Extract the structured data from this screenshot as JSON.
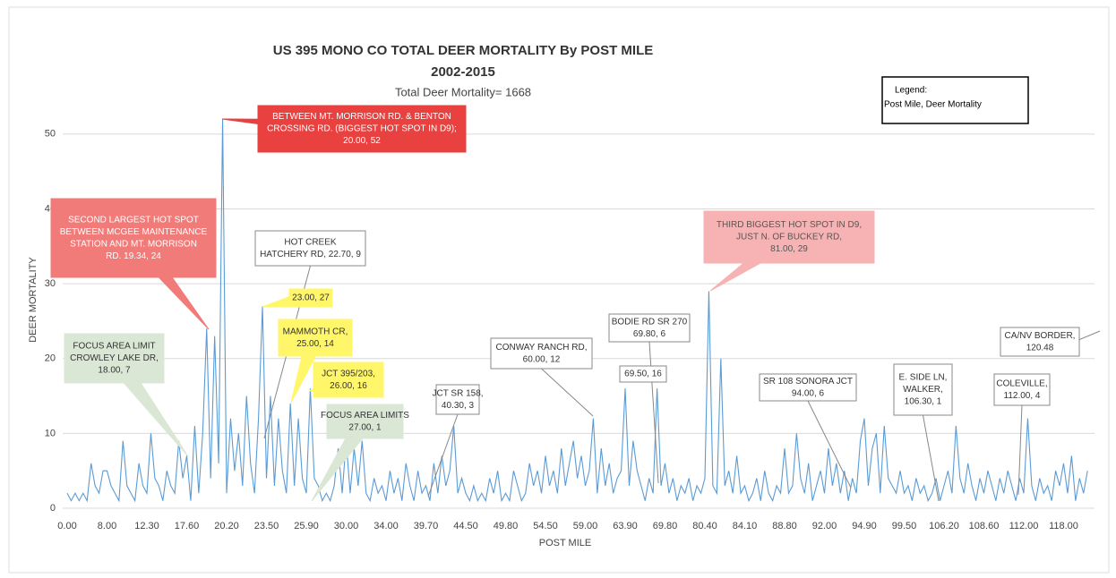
{
  "chart_data": {
    "type": "line",
    "title": "US 395 MONO CO TOTAL DEER MORTALITY By POST MILE",
    "subtitle": "2002-2015",
    "total_label": "Total Deer Mortality= 1668",
    "legend_lines": [
      "Legend:",
      "Post Mile, Deer Mortality"
    ],
    "ylabel": "DEER MORTALITY",
    "xlabel": "POST MILE",
    "ylim": [
      0,
      55
    ],
    "yticks": [
      0,
      10,
      20,
      30,
      40,
      50
    ],
    "grid": true,
    "categories": [
      {
        "value": 0,
        "label": "0.00"
      },
      null,
      null,
      null,
      null,
      null,
      null,
      null,
      null,
      null,
      {
        "value": 10,
        "label": "8.00"
      },
      null,
      null,
      null,
      null,
      null,
      null,
      null,
      null,
      null,
      {
        "value": 20,
        "label": "12.30"
      },
      null,
      null,
      null,
      null,
      null,
      null,
      null,
      null,
      null,
      {
        "value": 30,
        "label": "17.60"
      },
      null,
      null,
      null,
      null,
      null,
      null,
      null,
      null,
      null,
      {
        "value": 40,
        "label": "20.20"
      },
      null,
      null,
      null,
      null,
      null,
      null,
      null,
      null,
      null,
      {
        "value": 50,
        "label": "23.50"
      },
      null,
      null,
      null,
      null,
      null,
      null,
      null,
      null,
      null,
      {
        "value": 60,
        "label": "25.90"
      },
      null,
      null,
      null,
      null,
      null,
      null,
      null,
      null,
      null,
      {
        "value": 70,
        "label": "30.00"
      },
      null,
      null,
      null,
      null,
      null,
      null,
      null,
      null,
      null,
      {
        "value": 80,
        "label": "34.00"
      },
      null,
      null,
      null,
      null,
      null,
      null,
      null,
      null,
      null,
      {
        "value": 90,
        "label": "39.70"
      },
      null,
      null,
      null,
      null,
      null,
      null,
      null,
      null,
      null,
      {
        "value": 100,
        "label": "44.50"
      },
      null,
      null,
      null,
      null,
      null,
      null,
      null,
      null,
      null,
      {
        "value": 110,
        "label": "49.80"
      },
      null,
      null,
      null,
      null,
      null,
      null,
      null,
      null,
      null,
      {
        "value": 120,
        "label": "54.50"
      },
      null,
      null,
      null,
      null,
      null,
      null,
      null,
      null,
      null,
      {
        "value": 130,
        "label": "59.00"
      },
      null,
      null,
      null,
      null,
      null,
      null,
      null,
      null,
      null,
      {
        "value": 140,
        "label": "63.90"
      },
      null,
      null,
      null,
      null,
      null,
      null,
      null,
      null,
      null,
      {
        "value": 150,
        "label": "69.80"
      },
      null,
      null,
      null,
      null,
      null,
      null,
      null,
      null,
      null,
      {
        "value": 160,
        "label": "80.40"
      },
      null,
      null,
      null,
      null,
      null,
      null,
      null,
      null,
      null,
      {
        "value": 170,
        "label": "84.10"
      },
      null,
      null,
      null,
      null,
      null,
      null,
      null,
      null,
      null,
      {
        "value": 180,
        "label": "88.80"
      },
      null,
      null,
      null,
      null,
      null,
      null,
      null,
      null,
      null,
      {
        "value": 190,
        "label": "92.00"
      },
      null,
      null,
      null,
      null,
      null,
      null,
      null,
      null,
      null,
      {
        "value": 200,
        "label": "94.90"
      },
      null,
      null,
      null,
      null,
      null,
      null,
      null,
      null,
      null,
      {
        "value": 210,
        "label": "99.50"
      },
      null,
      null,
      null,
      null,
      null,
      null,
      null,
      null,
      null,
      {
        "value": 220,
        "label": "106.20"
      },
      null,
      null,
      null,
      null,
      null,
      null,
      null,
      null,
      null,
      {
        "value": 230,
        "label": "108.60"
      },
      null,
      null,
      null,
      null,
      null,
      null,
      null,
      null,
      null,
      {
        "value": 240,
        "label": "112.00"
      },
      null,
      null,
      null,
      null,
      null,
      null,
      null,
      null,
      null,
      {
        "value": 250,
        "label": "118.00"
      },
      null,
      null,
      null,
      null,
      null,
      null
    ],
    "series": [
      {
        "name": "Deer Mortality",
        "color": "#5b9bd5",
        "values": [
          2,
          1,
          2,
          1,
          2,
          1,
          6,
          3,
          2,
          5,
          5,
          3,
          2,
          1,
          9,
          3,
          2,
          1,
          6,
          3,
          2,
          10,
          4,
          3,
          1,
          5,
          3,
          2,
          9,
          4,
          7,
          1,
          11,
          2,
          10,
          24,
          4,
          23,
          6,
          52,
          2,
          12,
          5,
          10,
          3,
          15,
          6,
          2,
          12,
          27,
          4,
          15,
          3,
          12,
          5,
          2,
          14,
          3,
          12,
          4,
          2,
          16,
          4,
          3,
          1,
          2,
          1,
          3,
          8,
          2,
          9,
          2,
          8,
          3,
          9,
          2,
          1,
          4,
          2,
          3,
          1,
          5,
          2,
          4,
          1,
          6,
          3,
          1,
          5,
          2,
          3,
          1,
          6,
          2,
          7,
          3,
          5,
          11,
          2,
          4,
          2,
          1,
          3,
          1,
          2,
          1,
          4,
          2,
          5,
          1,
          2,
          1,
          5,
          3,
          1,
          2,
          6,
          3,
          5,
          2,
          7,
          3,
          5,
          2,
          8,
          3,
          6,
          9,
          4,
          7,
          3,
          5,
          12,
          2,
          8,
          3,
          6,
          2,
          4,
          5,
          16,
          3,
          9,
          5,
          3,
          1,
          4,
          2,
          16,
          3,
          6,
          2,
          4,
          1,
          3,
          2,
          4,
          1,
          3,
          2,
          4,
          29,
          3,
          2,
          20,
          3,
          5,
          2,
          7,
          2,
          3,
          1,
          2,
          4,
          1,
          5,
          2,
          1,
          3,
          2,
          8,
          2,
          3,
          10,
          4,
          2,
          6,
          1,
          3,
          5,
          2,
          8,
          3,
          6,
          2,
          5,
          1,
          4,
          2,
          9,
          12,
          3,
          8,
          10,
          2,
          11,
          4,
          3,
          2,
          5,
          2,
          3,
          1,
          4,
          2,
          3,
          1,
          2,
          4,
          1,
          3,
          5,
          2,
          11,
          4,
          2,
          6,
          3,
          1,
          4,
          2,
          5,
          3,
          1,
          4,
          2,
          5,
          3,
          1,
          4,
          2,
          12,
          3,
          1,
          4,
          2,
          3,
          1,
          5,
          3,
          6,
          2,
          7,
          1,
          4,
          2,
          5
        ]
      }
    ],
    "annotations": [
      {
        "lines": [
          "BETWEEN MT. MORRISON RD. & BENTON",
          "CROSSING RD. (BIGGEST HOT SPOT IN D9);",
          "20.00, 52"
        ]
      },
      {
        "lines": [
          "SECOND LARGEST HOT SPOT",
          "BETWEEN MCGEE MAINTENANCE",
          "STATION AND MT. MORRISON",
          "RD. 19.34, 24"
        ]
      },
      {
        "lines": [
          "HOT CREEK",
          "HATCHERY RD, 22.70, 9"
        ]
      },
      {
        "lines": [
          "23.00, 27"
        ]
      },
      {
        "lines": [
          "MAMMOTH CR,",
          "25.00, 14"
        ]
      },
      {
        "lines": [
          "JCT 395/203,",
          "26.00, 16"
        ]
      },
      {
        "lines": [
          "FOCUS AREA LIMIT",
          "CROWLEY LAKE DR,",
          "18.00, 7"
        ]
      },
      {
        "lines": [
          "FOCUS AREA LIMITS",
          "27.00, 1"
        ]
      },
      {
        "lines": [
          "JCT SR 158,",
          "40.30, 3"
        ]
      },
      {
        "lines": [
          "CONWAY RANCH RD,",
          "60.00, 12"
        ]
      },
      {
        "lines": [
          "BODIE RD SR 270",
          "69.80, 6"
        ]
      },
      {
        "lines": [
          "69.50, 16"
        ]
      },
      {
        "lines": [
          "THIRD BIGGEST HOT SPOT IN D9,",
          "JUST N. OF BUCKEY RD,",
          "81.00, 29"
        ]
      },
      {
        "lines": [
          "SR 108 SONORA JCT",
          "94.00, 6"
        ]
      },
      {
        "lines": [
          "E. SIDE LN,",
          "WALKER,",
          "106.30, 1"
        ]
      },
      {
        "lines": [
          "COLEVILLE,",
          "112.00, 4"
        ]
      },
      {
        "lines": [
          "CA/NV BORDER,",
          "120.48"
        ]
      }
    ]
  }
}
